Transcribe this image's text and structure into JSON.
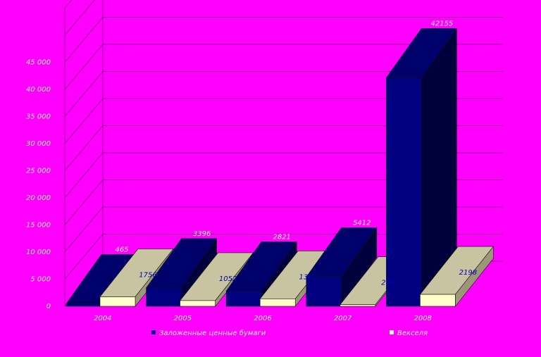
{
  "chart_data": {
    "type": "bar",
    "categories": [
      "2004",
      "2005",
      "2006",
      "2007",
      "2008"
    ],
    "series": [
      {
        "name": "Заложенные ценные бумаги",
        "values": [
          465,
          3396,
          2821,
          5412,
          42155
        ],
        "color": "#000080"
      },
      {
        "name": "Векселя",
        "values": [
          1756,
          1052,
          1382,
          295,
          2198
        ],
        "color": "#ffffcc"
      }
    ],
    "data_labels": [
      [
        "465",
        "3396",
        "2821",
        "5412",
        "42155"
      ],
      [
        "1756",
        "1052",
        "1382",
        "295",
        "2198"
      ]
    ],
    "y_ticks": [
      0,
      5000,
      10000,
      15000,
      20000,
      25000,
      30000,
      35000,
      40000,
      45000
    ],
    "y_tick_labels": [
      "0",
      "5 000",
      "10 000",
      "15 000",
      "20 000",
      "25 000",
      "30 000",
      "35 000",
      "40 000",
      "45 000"
    ],
    "ylim": [
      0,
      55000
    ],
    "grid": true,
    "legend_position": "bottom",
    "background": "#ff00ff",
    "floor_color": "#c8c3a0"
  }
}
